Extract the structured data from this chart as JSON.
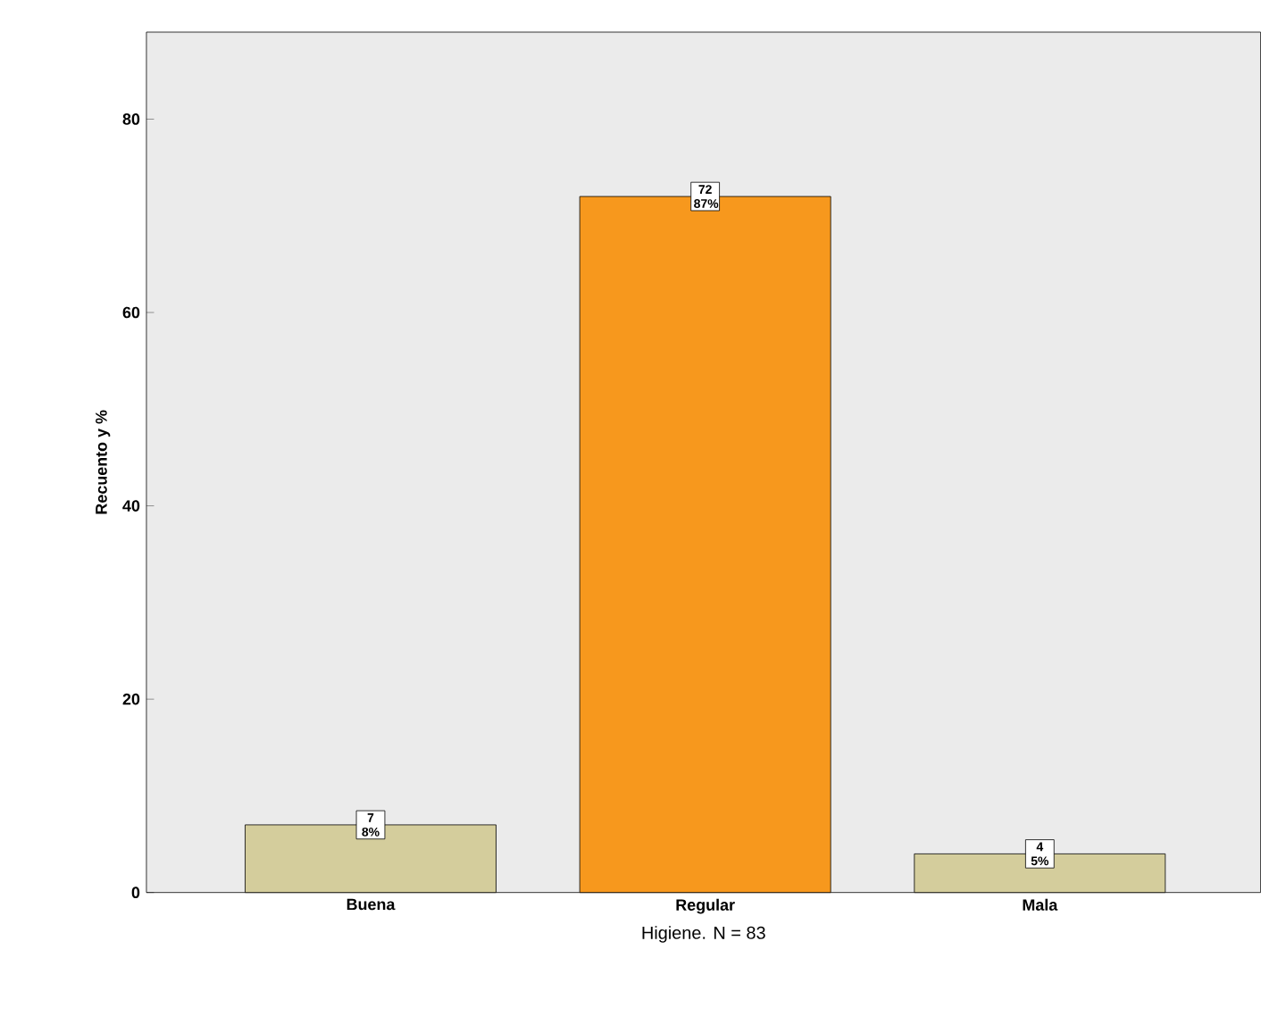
{
  "chart_data": {
    "type": "bar",
    "xlabel": "Higiene.  N = 83",
    "ylabel": "Recuento y %",
    "categories": [
      "Buena",
      "Regular",
      "Mala"
    ],
    "values": [
      7,
      72,
      4
    ],
    "colors": [
      "#d4cd9c",
      "#f7981d",
      "#d4cd9c"
    ],
    "value_labels": [
      "7 8%",
      "72 87%",
      "4 5%"
    ],
    "ylim": [
      0,
      89
    ],
    "yticks": [
      0,
      20,
      40,
      60,
      80
    ],
    "grid": false,
    "legend": false
  }
}
